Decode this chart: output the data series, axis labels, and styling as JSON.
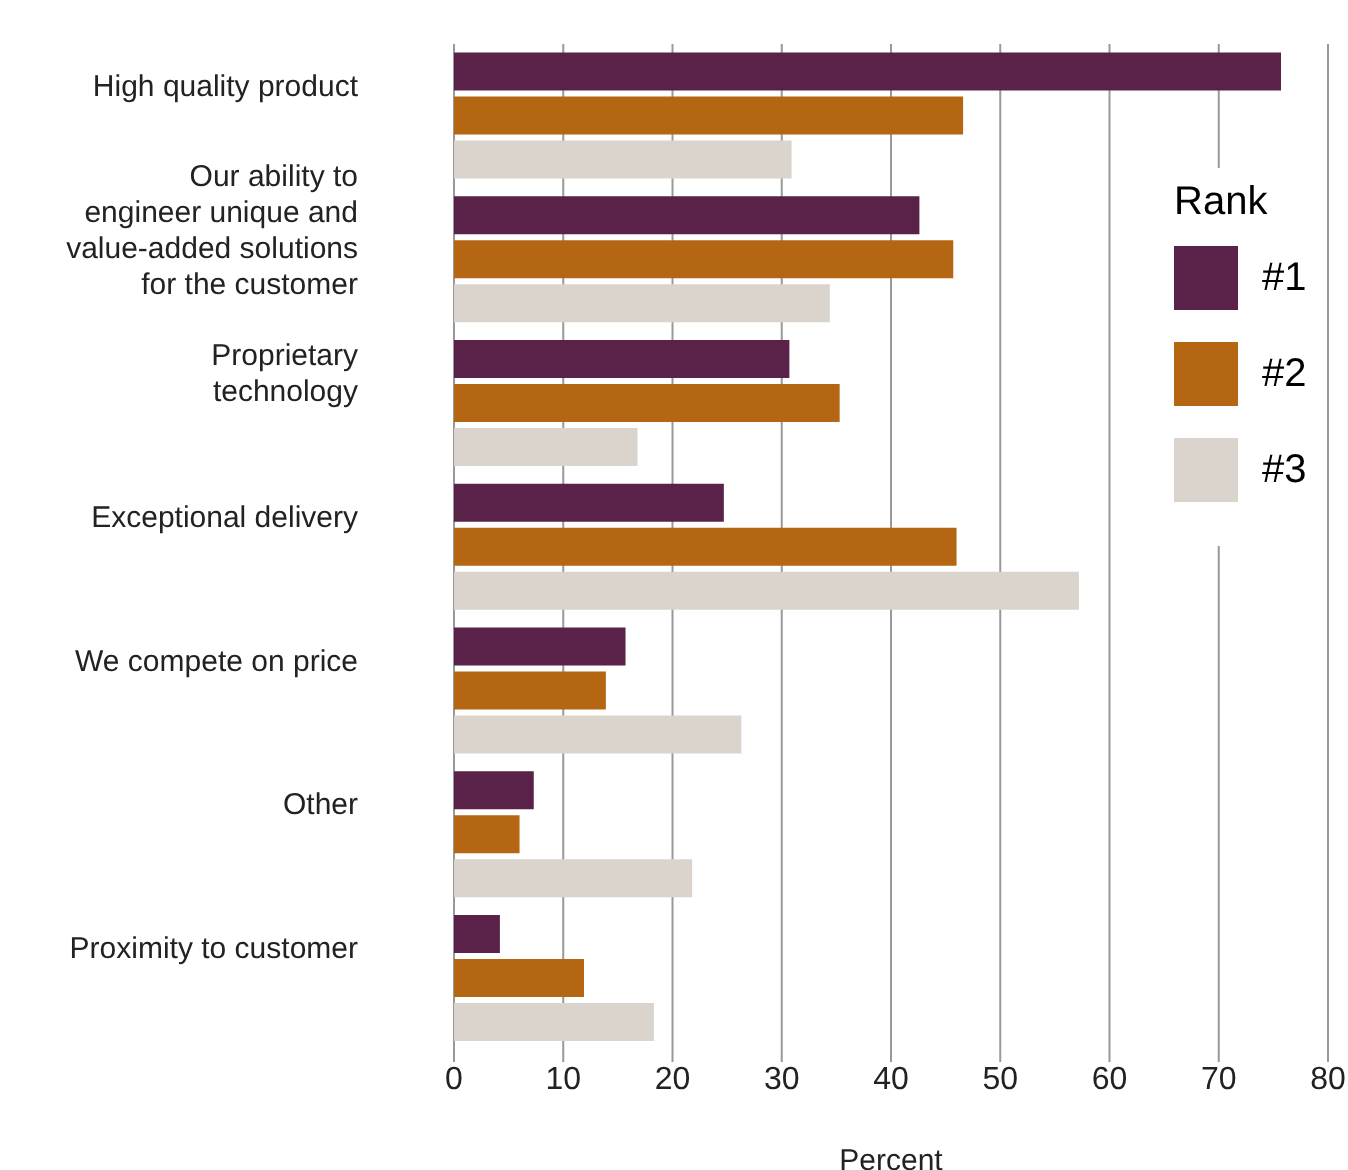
{
  "chart_data": {
    "type": "bar",
    "orientation": "horizontal",
    "categories": [
      "High quality product",
      "Our ability to engineer unique and value-added solutions for the customer",
      "Proprietary technology",
      "Exceptional delivery",
      "We compete on price",
      "Other",
      "Proximity to customer"
    ],
    "series": [
      {
        "name": "#1",
        "color": "#5a2149",
        "values": [
          75.7,
          42.6,
          30.7,
          24.7,
          15.7,
          7.3,
          4.2
        ]
      },
      {
        "name": "#2",
        "color": "#b56613",
        "values": [
          46.6,
          45.7,
          35.3,
          46,
          13.9,
          6,
          11.9
        ]
      },
      {
        "name": "#3",
        "color": "#dad4cd",
        "values": [
          30.9,
          34.4,
          16.8,
          57.2,
          26.3,
          21.8,
          18.3
        ]
      }
    ],
    "xlabel": "Percent",
    "xlim": [
      0,
      80
    ],
    "xticks": [
      0,
      10,
      20,
      30,
      40,
      50,
      60,
      70,
      80
    ],
    "grid": "x",
    "legend": "right",
    "legend_title": "Rank"
  }
}
